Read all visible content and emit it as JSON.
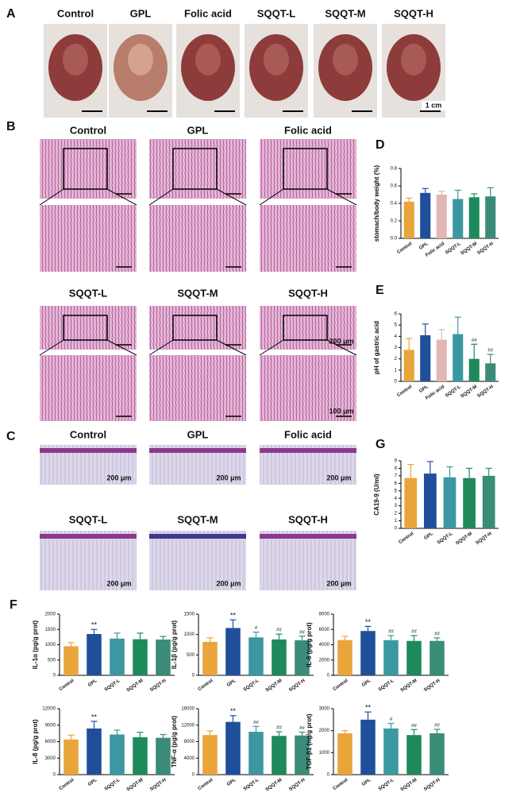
{
  "panel_labels": [
    "A",
    "B",
    "C",
    "D",
    "E",
    "F",
    "G"
  ],
  "gross_images": {
    "labels": [
      "Control",
      "GPL",
      "Folic acid",
      "SQQT-L",
      "SQQT-M",
      "SQQT-H"
    ],
    "scale_bar": "1 cm"
  },
  "he_images": {
    "labels": [
      "Control",
      "GPL",
      "Folic acid",
      "SQQT-L",
      "SQQT-M",
      "SQQT-H"
    ],
    "scale_bars": [
      "200 μm",
      "100 μm"
    ]
  },
  "pas_images": {
    "labels": [
      "Control",
      "GPL",
      "Folic acid",
      "SQQT-L",
      "SQQT-M",
      "SQQT-H"
    ],
    "scale_bar": "200 μm"
  },
  "chart_data": [
    {
      "type": "bar",
      "y_label": "stomach/body weight (%)",
      "categories": [
        "Control",
        "GPL",
        "Folic acid",
        "SQQT-L",
        "SQQT-M",
        "SQQT-H"
      ],
      "values": [
        0.42,
        0.52,
        0.5,
        0.45,
        0.47,
        0.48
      ],
      "errors": [
        0.04,
        0.05,
        0.04,
        0.1,
        0.04,
        0.1
      ],
      "colors": [
        "#e9a53b",
        "#1f4f9a",
        "#e2b6b6",
        "#3b98a2",
        "#1e8a5c",
        "#3a8c79"
      ],
      "ylim": [
        0,
        0.8
      ],
      "yticks": [
        {
          "value": 0,
          "label": "0.0"
        },
        {
          "value": 0.2,
          "label": "0.2"
        },
        {
          "value": 0.4,
          "label": "0.4"
        },
        {
          "value": 0.6,
          "label": "0.6"
        },
        {
          "value": 0.8,
          "label": "0.8"
        }
      ]
    },
    {
      "type": "bar",
      "y_label": "pH of gastric acid",
      "categories": [
        "Control",
        "GPL",
        "Folic acid",
        "SQQT-L",
        "SQQT-M",
        "SQQT-H"
      ],
      "values": [
        2.8,
        4.1,
        3.7,
        4.2,
        2.0,
        1.6
      ],
      "errors": [
        1.0,
        1.0,
        0.9,
        1.5,
        1.3,
        0.8
      ],
      "annotations": [
        null,
        null,
        null,
        null,
        "##",
        "##"
      ],
      "colors": [
        "#e9a53b",
        "#1f4f9a",
        "#e2b6b6",
        "#3b98a2",
        "#1e8a5c",
        "#3a8c79"
      ],
      "ylim": [
        0,
        6
      ],
      "yticks": [
        0,
        1,
        2,
        3,
        4,
        5,
        6
      ]
    },
    {
      "type": "bar",
      "y_label": "CA19-9 (U/ml)",
      "categories": [
        "Control",
        "GPL",
        "SQQT-L",
        "SQQT-M",
        "SQQT-H"
      ],
      "values": [
        6.7,
        7.3,
        6.8,
        6.7,
        7.0
      ],
      "errors": [
        1.8,
        1.6,
        1.4,
        1.3,
        1.0
      ],
      "colors": [
        "#e9a53b",
        "#1f4f9a",
        "#3b98a2",
        "#1e8a5c",
        "#3a8c79"
      ],
      "ylim": [
        0,
        9
      ],
      "yticks": [
        0,
        1,
        2,
        3,
        4,
        5,
        6,
        7,
        8,
        9
      ]
    },
    {
      "type": "bar",
      "y_label": "IL-1α (pg/g prot)",
      "categories": [
        "Control",
        "GPL",
        "SQQT-L",
        "SQQT-M",
        "SQQT-H"
      ],
      "values": [
        950,
        1350,
        1200,
        1180,
        1170
      ],
      "errors": [
        120,
        150,
        180,
        200,
        100
      ],
      "annotations": [
        null,
        "**",
        null,
        null,
        null
      ],
      "colors": [
        "#e9a53b",
        "#1f4f9a",
        "#3b98a2",
        "#1e8a5c",
        "#3a8c79"
      ],
      "ylim": [
        0,
        2000
      ],
      "yticks": [
        0,
        500,
        1000,
        1500,
        2000
      ]
    },
    {
      "type": "bar",
      "y_label": "IL-1β (pg/g prot)",
      "categories": [
        "Control",
        "GPL",
        "SQQT-L",
        "SQQT-M",
        "SQQT-H"
      ],
      "values": [
        820,
        1160,
        930,
        880,
        860
      ],
      "errors": [
        100,
        200,
        130,
        130,
        100
      ],
      "annotations": [
        null,
        "**",
        "#",
        "##",
        "##"
      ],
      "colors": [
        "#e9a53b",
        "#1f4f9a",
        "#3b98a2",
        "#1e8a5c",
        "#3a8c79"
      ],
      "ylim": [
        0,
        1500
      ],
      "yticks": [
        0,
        500,
        1000,
        1500
      ]
    },
    {
      "type": "bar",
      "y_label": "IL-6 (pg/g prot)",
      "categories": [
        "Control",
        "GPL",
        "SQQT-L",
        "SQQT-M",
        "SQQT-H"
      ],
      "values": [
        4600,
        5800,
        4600,
        4500,
        4500
      ],
      "errors": [
        500,
        600,
        600,
        700,
        400
      ],
      "annotations": [
        null,
        "**",
        "##",
        "##",
        "##"
      ],
      "colors": [
        "#e9a53b",
        "#1f4f9a",
        "#3b98a2",
        "#1e8a5c",
        "#3a8c79"
      ],
      "ylim": [
        0,
        8000
      ],
      "yticks": [
        0,
        2000,
        4000,
        6000,
        8000
      ]
    },
    {
      "type": "bar",
      "y_label": "IL-8 (pg/g prot)",
      "categories": [
        "Control",
        "GPL",
        "SQQT-L",
        "SQQT-M",
        "SQQT-H"
      ],
      "values": [
        6400,
        8400,
        7300,
        6800,
        6700
      ],
      "errors": [
        800,
        1300,
        800,
        900,
        600
      ],
      "annotations": [
        null,
        "**",
        null,
        null,
        null
      ],
      "colors": [
        "#e9a53b",
        "#1f4f9a",
        "#3b98a2",
        "#1e8a5c",
        "#3a8c79"
      ],
      "ylim": [
        0,
        12000
      ],
      "yticks": [
        0,
        3000,
        6000,
        9000,
        12000
      ]
    },
    {
      "type": "bar",
      "y_label": "TNF-α (pg/g prot)",
      "categories": [
        "Control",
        "GPL",
        "SQQT-L",
        "SQQT-M",
        "SQQT-H"
      ],
      "values": [
        9600,
        12800,
        10400,
        9400,
        9500
      ],
      "errors": [
        1000,
        1500,
        1300,
        1000,
        800
      ],
      "annotations": [
        null,
        "**",
        "##",
        "##",
        "##"
      ],
      "colors": [
        "#e9a53b",
        "#1f4f9a",
        "#3b98a2",
        "#1e8a5c",
        "#3a8c79"
      ],
      "ylim": [
        0,
        16000
      ],
      "yticks": [
        0,
        4000,
        8000,
        12000,
        16000
      ]
    },
    {
      "type": "bar",
      "y_label": "TGF-β1 (ng/g prot)",
      "categories": [
        "Control",
        "GPL",
        "SQQT-L",
        "SQQT-M",
        "SQQT-H"
      ],
      "values": [
        1880,
        2500,
        2100,
        1800,
        1880
      ],
      "errors": [
        120,
        350,
        230,
        250,
        180
      ],
      "annotations": [
        null,
        "**",
        "#",
        "##",
        "##"
      ],
      "colors": [
        "#e9a53b",
        "#1f4f9a",
        "#3b98a2",
        "#1e8a5c",
        "#3a8c79"
      ],
      "ylim": [
        0,
        3000
      ],
      "yticks": [
        0,
        1000,
        2000,
        3000
      ]
    }
  ]
}
